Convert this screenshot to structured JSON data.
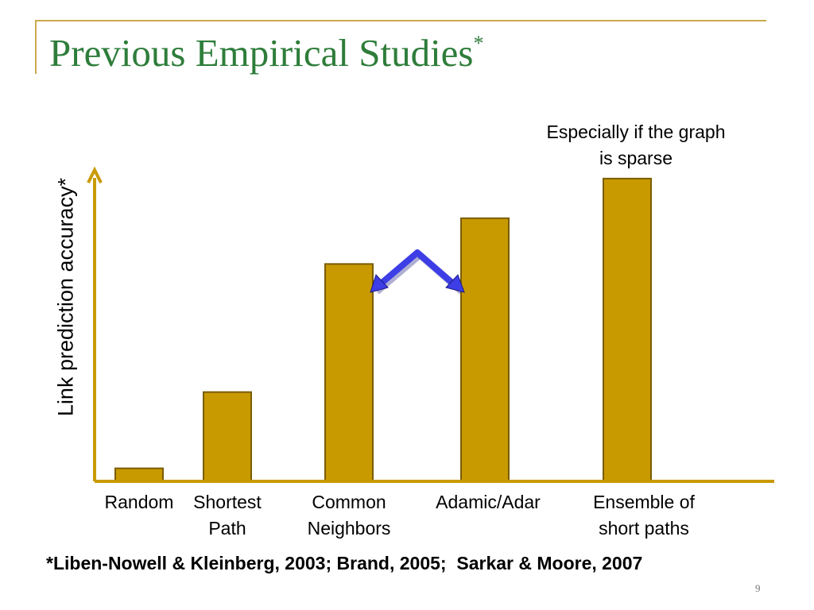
{
  "slide": {
    "title": "Previous Empirical Studies",
    "title_marker": "*",
    "citation": "*Liben-Nowell & Kleinberg, 2003; Brand, 2005;  Sarkar & Moore, 2007",
    "page_number": "9",
    "colors": {
      "title": "#2e7d3a",
      "frame": "#c9a94a",
      "arrow": "#3d3ee6"
    }
  },
  "chart_data": {
    "type": "bar",
    "title": "",
    "xlabel": "",
    "ylabel": "Link prediction accuracy*",
    "ylim": [
      0,
      100
    ],
    "axis_ticks": false,
    "grid": false,
    "categories": [
      "Random",
      "Shortest\nPath",
      "Common\nNeighbors",
      "Adamic/Adar",
      "Ensemble of\nshort paths"
    ],
    "values": [
      4,
      29,
      71,
      86,
      99
    ],
    "annotation": "Especially if the graph is sparse",
    "bar_color": "#c89a00",
    "bar_edge_color": "#7a5c00"
  }
}
